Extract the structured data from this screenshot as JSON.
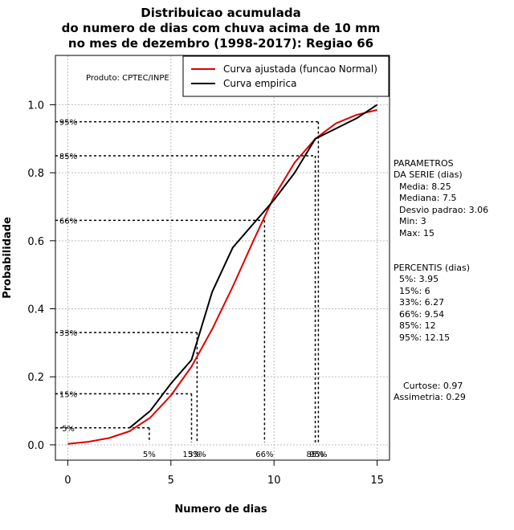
{
  "chart_data": {
    "type": "line",
    "title": [
      "Distribuicao acumulada",
      "do numero de dias com chuva acima de 10 mm",
      "no mes de dezembro (1998-2017): Regiao 66"
    ],
    "xlabel": "Numero de dias",
    "ylabel": "Probabilidade",
    "xlim": [
      -0.6,
      15.6
    ],
    "ylim": [
      -0.045,
      1.145
    ],
    "x_ticks": [
      0,
      5,
      10,
      15
    ],
    "y_ticks": [
      0.0,
      0.2,
      0.4,
      0.6,
      0.8,
      1.0
    ],
    "y_tick_labels": [
      "0.0",
      "0.2",
      "0.4",
      "0.6",
      "0.8",
      "1.0"
    ],
    "grid": true,
    "producer": "Produto: CPTEC/INPE",
    "legend": {
      "placement": "top-right",
      "entries": [
        {
          "label": "Curva ajustada (funcao Normal)",
          "color": "#dd0000"
        },
        {
          "label": "Curva empirica",
          "color": "#000000"
        }
      ]
    },
    "series": [
      {
        "name": "Curva ajustada (funcao Normal)",
        "color": "#dd0000",
        "x": [
          0,
          1,
          2,
          3,
          4,
          5,
          6,
          7,
          8,
          9,
          10,
          11,
          12,
          13,
          14,
          15
        ],
        "y": [
          0.003,
          0.009,
          0.02,
          0.04,
          0.08,
          0.145,
          0.23,
          0.34,
          0.465,
          0.6,
          0.73,
          0.83,
          0.9,
          0.945,
          0.97,
          0.985
        ]
      },
      {
        "name": "Curva empirica",
        "color": "#000000",
        "x": [
          3,
          4,
          5,
          6,
          7,
          8,
          9,
          10,
          11,
          12,
          13,
          14,
          15
        ],
        "y": [
          0.05,
          0.1,
          0.18,
          0.25,
          0.45,
          0.58,
          0.65,
          0.72,
          0.8,
          0.9,
          0.93,
          0.96,
          1.0
        ]
      }
    ],
    "percentile_markers": [
      {
        "label": "5%",
        "p": 0.05,
        "x": 3.95
      },
      {
        "label": "15%",
        "p": 0.15,
        "x": 6
      },
      {
        "label": "33%",
        "p": 0.33,
        "x": 6.27
      },
      {
        "label": "66%",
        "p": 0.66,
        "x": 9.54
      },
      {
        "label": "85%",
        "p": 0.85,
        "x": 12
      },
      {
        "label": "95%",
        "p": 0.95,
        "x": 12.15
      }
    ],
    "parameters": {
      "heading": [
        "PARAMETROS",
        "DA SERIE (dias)"
      ],
      "lines": [
        "Media: 8.25",
        "Mediana: 7.5",
        "Desvio padrao: 3.06",
        "Min: 3",
        "Max: 15"
      ]
    },
    "percentiles": {
      "heading": "PERCENTIS (dias)",
      "lines": [
        "5%: 3.95",
        "15%: 6",
        "33%: 6.27",
        "66%: 9.54",
        "85%: 12",
        "95%: 12.15"
      ]
    },
    "shape": {
      "lines": [
        "Curtose: 0.97",
        "Assimetria: 0.29"
      ]
    }
  }
}
